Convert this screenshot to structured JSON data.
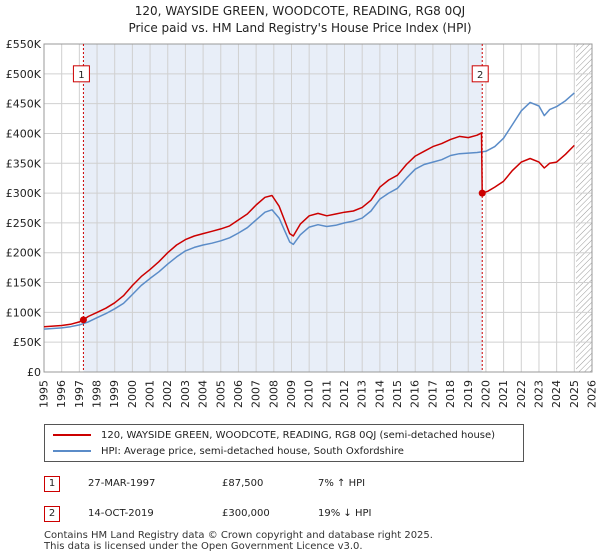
{
  "header": {
    "title": "120, WAYSIDE GREEN, WOODCOTE, READING, RG8 0QJ",
    "subtitle": "Price paid vs. HM Land Registry's House Price Index (HPI)"
  },
  "legend": {
    "red_label": "120, WAYSIDE GREEN, WOODCOTE, READING, RG8 0QJ (semi-detached house)",
    "blue_label": "HPI: Average price, semi-detached house, South Oxfordshire"
  },
  "sales": [
    {
      "num": "1",
      "date": "27-MAR-1997",
      "price": "£87,500",
      "hpi": "7% ↑ HPI"
    },
    {
      "num": "2",
      "date": "14-OCT-2019",
      "price": "£300,000",
      "hpi": "19% ↓ HPI"
    }
  ],
  "footer": {
    "line1": "Contains HM Land Registry data © Crown copyright and database right 2025.",
    "line2": "This data is licensed under the Open Government Licence v3.0."
  },
  "colors": {
    "red": "#cc0000",
    "blue": "#5b8cc8",
    "shade": "#e8eef8",
    "grid": "#d0d0d0"
  },
  "chart_data": {
    "type": "line",
    "title": "120, WAYSIDE GREEN, WOODCOTE, READING, RG8 0QJ",
    "subtitle": "Price paid vs. HM Land Registry's House Price Index (HPI)",
    "xlim": [
      1995,
      2026
    ],
    "ylim": [
      0,
      550000
    ],
    "x_ticks": [
      1995,
      1996,
      1997,
      1998,
      1999,
      2000,
      2001,
      2002,
      2003,
      2004,
      2005,
      2006,
      2007,
      2008,
      2009,
      2010,
      2011,
      2012,
      2013,
      2014,
      2015,
      2016,
      2017,
      2018,
      2019,
      2020,
      2021,
      2022,
      2023,
      2024,
      2025,
      2026
    ],
    "y_ticks": [
      {
        "value": 0,
        "label": "£0"
      },
      {
        "value": 50000,
        "label": "£50K"
      },
      {
        "value": 100000,
        "label": "£100K"
      },
      {
        "value": 150000,
        "label": "£150K"
      },
      {
        "value": 200000,
        "label": "£200K"
      },
      {
        "value": 250000,
        "label": "£250K"
      },
      {
        "value": 300000,
        "label": "£300K"
      },
      {
        "value": 350000,
        "label": "£350K"
      },
      {
        "value": 400000,
        "label": "£400K"
      },
      {
        "value": 450000,
        "label": "£450K"
      },
      {
        "value": 500000,
        "label": "£500K"
      },
      {
        "value": 550000,
        "label": "£550K"
      }
    ],
    "shaded_range": [
      1997.23,
      2019.79
    ],
    "hatched_from": 2025.1,
    "markers": [
      {
        "label": "1",
        "x": 1997.23,
        "y": 87500,
        "box_y": 500000
      },
      {
        "label": "2",
        "x": 2019.79,
        "y": 300000,
        "box_y": 500000
      }
    ],
    "series": [
      {
        "name": "120, WAYSIDE GREEN, WOODCOTE, READING, RG8 0QJ (semi-detached house)",
        "color": "#cc0000",
        "x": [
          1995,
          1995.5,
          1996,
          1996.5,
          1997,
          1997.23,
          1997.5,
          1998,
          1998.5,
          1999,
          1999.5,
          2000,
          2000.5,
          2001,
          2001.5,
          2002,
          2002.5,
          2003,
          2003.5,
          2004,
          2004.5,
          2005,
          2005.5,
          2006,
          2006.5,
          2007,
          2007.5,
          2007.9,
          2008.3,
          2008.6,
          2008.9,
          2009.1,
          2009.5,
          2010,
          2010.5,
          2011,
          2011.5,
          2012,
          2012.5,
          2013,
          2013.5,
          2014,
          2014.5,
          2015,
          2015.5,
          2016,
          2016.5,
          2017,
          2017.5,
          2018,
          2018.5,
          2019,
          2019.5,
          2019.75,
          2019.79,
          2020.1,
          2020.5,
          2021,
          2021.5,
          2022,
          2022.5,
          2023,
          2023.3,
          2023.6,
          2024,
          2024.5,
          2025
        ],
        "y": [
          76000,
          77000,
          78000,
          80000,
          84000,
          87500,
          93000,
          100000,
          107000,
          116000,
          128000,
          145000,
          160000,
          172000,
          185000,
          200000,
          213000,
          222000,
          228000,
          232000,
          236000,
          240000,
          245000,
          255000,
          265000,
          280000,
          293000,
          296000,
          278000,
          255000,
          232000,
          228000,
          248000,
          262000,
          266000,
          262000,
          265000,
          268000,
          270000,
          276000,
          288000,
          310000,
          322000,
          330000,
          348000,
          362000,
          370000,
          378000,
          383000,
          390000,
          395000,
          393000,
          397000,
          401000,
          300000,
          303000,
          310000,
          320000,
          338000,
          352000,
          358000,
          352000,
          342000,
          350000,
          352000,
          365000,
          380000
        ]
      },
      {
        "name": "HPI: Average price, semi-detached house, South Oxfordshire",
        "color": "#5b8cc8",
        "x": [
          1995,
          1995.5,
          1996,
          1996.5,
          1997,
          1997.5,
          1998,
          1998.5,
          1999,
          1999.5,
          2000,
          2000.5,
          2001,
          2001.5,
          2002,
          2002.5,
          2003,
          2003.5,
          2004,
          2004.5,
          2005,
          2005.5,
          2006,
          2006.5,
          2007,
          2007.5,
          2007.9,
          2008.3,
          2008.6,
          2008.9,
          2009.1,
          2009.5,
          2010,
          2010.5,
          2011,
          2011.5,
          2012,
          2012.5,
          2013,
          2013.5,
          2014,
          2014.5,
          2015,
          2015.5,
          2016,
          2016.5,
          2017,
          2017.5,
          2018,
          2018.5,
          2019,
          2019.5,
          2020,
          2020.5,
          2021,
          2021.5,
          2022,
          2022.5,
          2023,
          2023.3,
          2023.6,
          2024,
          2024.5,
          2025
        ],
        "y": [
          72000,
          73000,
          74000,
          76000,
          79000,
          84000,
          91000,
          98000,
          106000,
          115000,
          130000,
          145000,
          157000,
          168000,
          181000,
          193000,
          203000,
          209000,
          213000,
          216000,
          220000,
          225000,
          233000,
          242000,
          255000,
          268000,
          272000,
          258000,
          238000,
          218000,
          214000,
          230000,
          243000,
          247000,
          244000,
          246000,
          250000,
          253000,
          258000,
          270000,
          290000,
          300000,
          308000,
          325000,
          340000,
          348000,
          352000,
          356000,
          363000,
          366000,
          367000,
          368000,
          370000,
          378000,
          392000,
          415000,
          438000,
          452000,
          446000,
          430000,
          440000,
          445000,
          455000,
          468000
        ]
      }
    ]
  }
}
